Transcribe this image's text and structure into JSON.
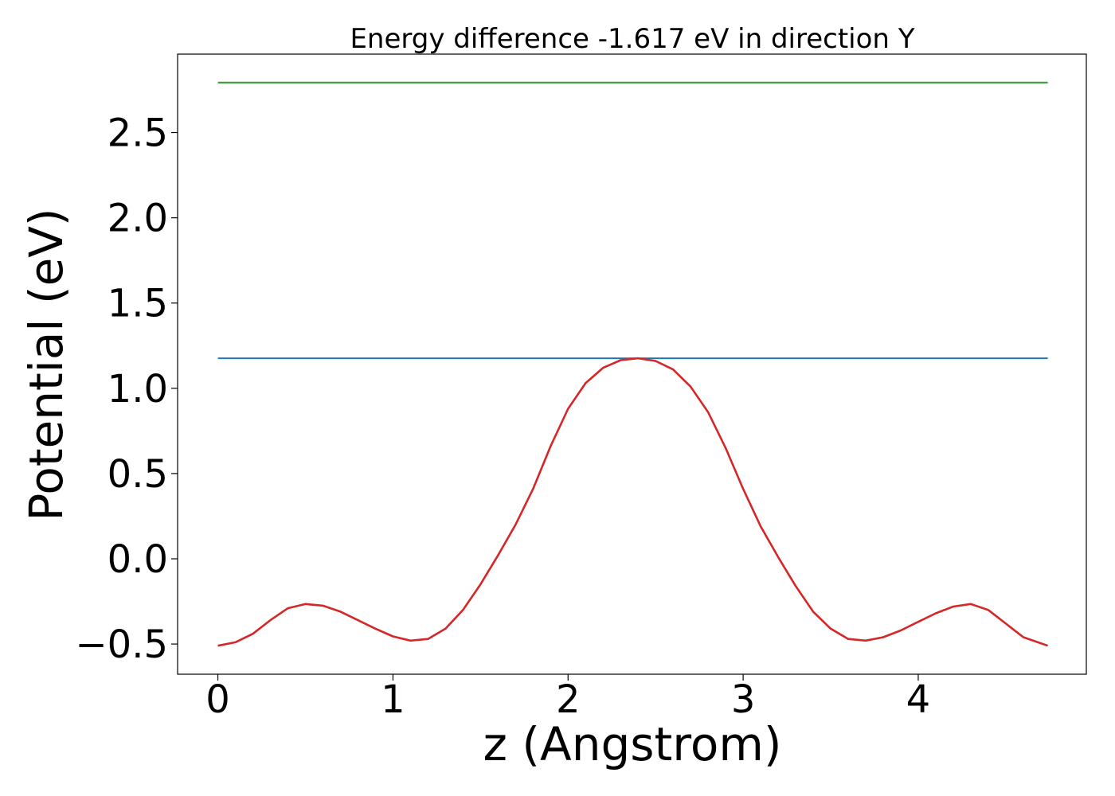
{
  "chart_data": {
    "type": "line",
    "title": "Energy difference -1.617 eV in direction Y",
    "xlabel": "z (Angstrom)",
    "ylabel": "Potential (eV)",
    "xlim": [
      -0.23,
      4.96
    ],
    "ylim": [
      -0.677,
      2.96
    ],
    "xticks": [
      0,
      1,
      2,
      3,
      4
    ],
    "xtick_labels": [
      "0",
      "1",
      "2",
      "3",
      "4"
    ],
    "yticks": [
      -0.5,
      0.0,
      0.5,
      1.0,
      1.5,
      2.0,
      2.5
    ],
    "ytick_labels": [
      "−0.5",
      "0.0",
      "0.5",
      "1.0",
      "1.5",
      "2.0",
      "2.5"
    ],
    "grid": false,
    "legend": "none",
    "series": [
      {
        "color": "#2ca02c",
        "x": [
          0,
          4.74
        ],
        "y": [
          2.793,
          2.793
        ]
      },
      {
        "color": "#1f77b4",
        "x": [
          0,
          4.74
        ],
        "y": [
          1.176,
          1.176
        ]
      },
      {
        "color": "#d62728",
        "x": [
          0,
          0.1,
          0.2,
          0.3,
          0.4,
          0.5,
          0.6,
          0.7,
          0.8,
          0.9,
          1.0,
          1.1,
          1.2,
          1.3,
          1.4,
          1.5,
          1.6,
          1.7,
          1.8,
          1.9,
          2.0,
          2.1,
          2.2,
          2.3,
          2.4,
          2.5,
          2.6,
          2.7,
          2.8,
          2.9,
          3.0,
          3.1,
          3.2,
          3.3,
          3.4,
          3.5,
          3.6,
          3.7,
          3.8,
          3.9,
          4.0,
          4.1,
          4.2,
          4.3,
          4.4,
          4.5,
          4.6,
          4.74
        ],
        "y": [
          -0.51,
          -0.49,
          -0.44,
          -0.36,
          -0.29,
          -0.265,
          -0.275,
          -0.31,
          -0.36,
          -0.41,
          -0.455,
          -0.48,
          -0.47,
          -0.41,
          -0.3,
          -0.15,
          0.02,
          0.2,
          0.41,
          0.66,
          0.88,
          1.03,
          1.12,
          1.165,
          1.176,
          1.16,
          1.11,
          1.01,
          0.86,
          0.65,
          0.41,
          0.19,
          0.01,
          -0.16,
          -0.31,
          -0.41,
          -0.47,
          -0.48,
          -0.46,
          -0.42,
          -0.37,
          -0.32,
          -0.28,
          -0.265,
          -0.3,
          -0.38,
          -0.46,
          -0.51
        ]
      }
    ]
  }
}
